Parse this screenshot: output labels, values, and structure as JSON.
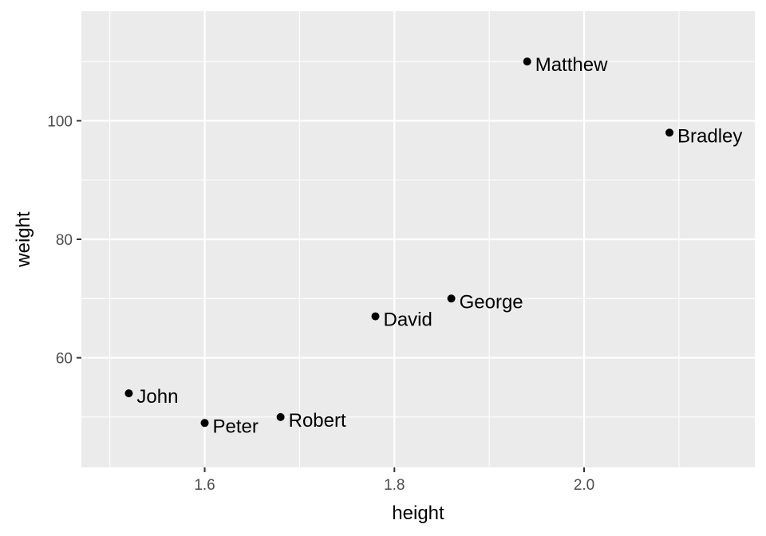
{
  "chart_data": {
    "type": "scatter",
    "xlabel": "height",
    "ylabel": "weight",
    "xlim": [
      1.47,
      2.18
    ],
    "ylim": [
      41.5,
      118.5
    ],
    "x_ticks": [
      1.6,
      1.8,
      2.0
    ],
    "x_tick_labels": [
      "1.6",
      "1.8",
      "2.0"
    ],
    "x_minor_ticks": [
      1.5,
      1.7,
      1.9,
      2.1
    ],
    "y_ticks": [
      60,
      80,
      100
    ],
    "y_tick_labels": [
      "60",
      "80",
      "100"
    ],
    "y_minor_ticks": [
      50,
      70,
      90,
      110
    ],
    "grid": true,
    "legend": "none",
    "colors": {
      "panel": "#ebebeb",
      "grid": "#ffffff",
      "point": "#000000",
      "tick_label": "#4d4d4d"
    },
    "points": [
      {
        "label": "John",
        "x": 1.52,
        "y": 54
      },
      {
        "label": "Peter",
        "x": 1.6,
        "y": 49
      },
      {
        "label": "Robert",
        "x": 1.68,
        "y": 50
      },
      {
        "label": "David",
        "x": 1.78,
        "y": 67
      },
      {
        "label": "George",
        "x": 1.86,
        "y": 70
      },
      {
        "label": "Matthew",
        "x": 1.94,
        "y": 110
      },
      {
        "label": "Bradley",
        "x": 2.09,
        "y": 98
      }
    ]
  }
}
